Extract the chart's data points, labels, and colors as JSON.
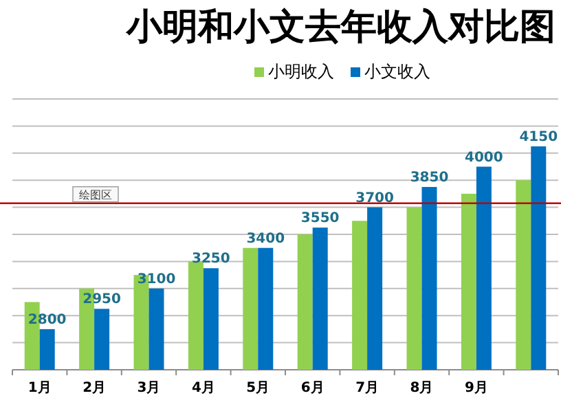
{
  "chart_data": {
    "type": "bar",
    "title": "小明和小文去年收入对比图",
    "categories": [
      "1月",
      "2月",
      "3月",
      "4月",
      "5月",
      "6月",
      "7月",
      "8月",
      "9月",
      null
    ],
    "series": [
      {
        "name": "小明收入",
        "color": "#92d050",
        "values": [
          3000,
          3100,
          3200,
          3300,
          3400,
          3500,
          3600,
          3700,
          3800,
          3900
        ]
      },
      {
        "name": "小文收入",
        "color": "#0070c0",
        "values": [
          2800,
          2950,
          3100,
          3250,
          3400,
          3550,
          3700,
          3850,
          4000,
          4150
        ],
        "value_labels": [
          "2800",
          "2950",
          "3100",
          "3250",
          "3400",
          "3550",
          "3700",
          "3850",
          "4000",
          "4150"
        ]
      }
    ],
    "ylim": [
      2500,
      4500
    ],
    "yticks": [
      {
        "value": 2500,
        "label": null
      },
      {
        "value": 2700,
        "label": null
      },
      {
        "value": 2900,
        "label": null
      },
      {
        "value": 3100,
        "label": null
      },
      {
        "value": 3300,
        "label": null
      },
      {
        "value": 3500,
        "label": null
      },
      {
        "value": 3700,
        "label": null
      },
      {
        "value": 3900,
        "label": null
      },
      {
        "value": 4100,
        "label": null
      },
      {
        "value": 4300,
        "label": null
      },
      {
        "value": 4500,
        "label": null
      }
    ],
    "tick_labels": "x",
    "grid": "y",
    "legend": "top",
    "ref_lines": [
      {
        "axis": "y",
        "value": 3730,
        "label": "绘图区",
        "color": "#c00000"
      }
    ]
  }
}
